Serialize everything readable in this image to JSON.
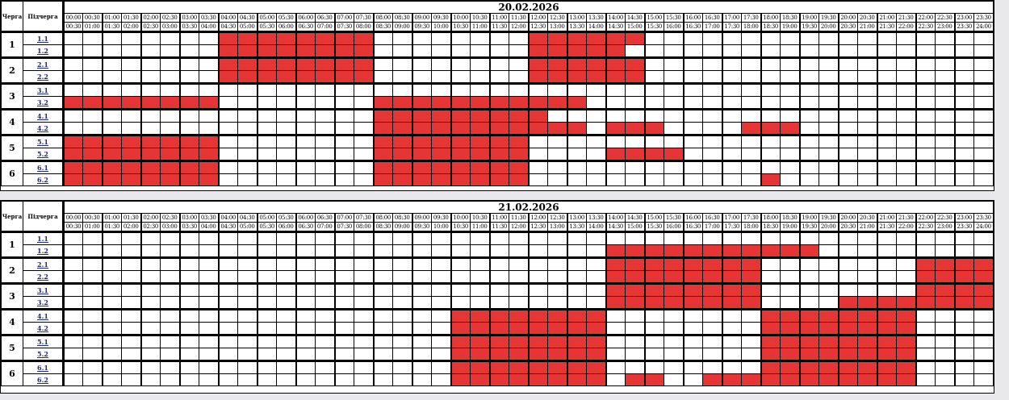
{
  "header": {
    "queue_label": "Черга",
    "subqueue_label": "Підчерга"
  },
  "queues": [
    "1",
    "2",
    "3",
    "4",
    "5",
    "6"
  ],
  "subqueues": [
    "1.1",
    "1.2",
    "2.1",
    "2.2",
    "3.1",
    "3.2",
    "4.1",
    "4.2",
    "5.1",
    "5.2",
    "6.1",
    "6.2"
  ],
  "time_starts": [
    "00:00",
    "00:30",
    "01:00",
    "01:30",
    "02:00",
    "02:30",
    "03:00",
    "03:30",
    "04:00",
    "04:30",
    "05:00",
    "05:30",
    "06:00",
    "06:30",
    "07:00",
    "07:30",
    "08:00",
    "08:30",
    "09:00",
    "09:30",
    "10:00",
    "10:30",
    "11:00",
    "11:30",
    "12:00",
    "12:30",
    "13:00",
    "13:30",
    "14:00",
    "14:30",
    "15:00",
    "15:30",
    "16:00",
    "16:30",
    "17:00",
    "17:30",
    "18:00",
    "18:30",
    "19:00",
    "19:30",
    "20:00",
    "20:30",
    "21:00",
    "21:30",
    "22:00",
    "22:30",
    "23:00",
    "23:30"
  ],
  "time_ends": [
    "00:30",
    "01:00",
    "01:30",
    "02:00",
    "02:30",
    "03:00",
    "03:30",
    "04:00",
    "04:30",
    "05:00",
    "05:30",
    "06:00",
    "06:30",
    "07:00",
    "07:30",
    "08:00",
    "08:30",
    "09:00",
    "09:30",
    "10:00",
    "10:30",
    "11:00",
    "11:30",
    "12:00",
    "12:30",
    "13:00",
    "13:30",
    "14:00",
    "14:30",
    "15:00",
    "15:30",
    "16:00",
    "16:30",
    "17:00",
    "17:30",
    "18:00",
    "18:30",
    "19:00",
    "19:30",
    "20:00",
    "20:30",
    "21:00",
    "21:30",
    "22:00",
    "22:30",
    "23:00",
    "23:30",
    "24:00"
  ],
  "outage_color": "#e63535",
  "schedules": [
    {
      "date": "20.02.2026",
      "outages": [
        [
          [
            8,
            15
          ],
          [
            24,
            29
          ]
        ],
        [
          [
            8,
            15
          ],
          [
            24,
            28
          ]
        ],
        [
          [
            8,
            15
          ],
          [
            24,
            29
          ]
        ],
        [
          [
            8,
            15
          ],
          [
            24,
            29
          ]
        ],
        [],
        [
          [
            0,
            7
          ],
          [
            16,
            26
          ]
        ],
        [
          [
            16,
            24
          ]
        ],
        [
          [
            16,
            26
          ],
          [
            28,
            30
          ],
          [
            35,
            37
          ]
        ],
        [
          [
            0,
            7
          ],
          [
            16,
            23
          ]
        ],
        [
          [
            0,
            7
          ],
          [
            16,
            23
          ],
          [
            28,
            31
          ]
        ],
        [
          [
            0,
            7
          ],
          [
            16,
            23
          ]
        ],
        [
          [
            0,
            7
          ],
          [
            16,
            23
          ],
          [
            36,
            36
          ]
        ]
      ]
    },
    {
      "date": "21.02.2026",
      "outages": [
        [],
        [
          [
            28,
            38
          ]
        ],
        [
          [
            28,
            35
          ],
          [
            44,
            47
          ]
        ],
        [
          [
            28,
            35
          ],
          [
            44,
            47
          ]
        ],
        [
          [
            28,
            35
          ],
          [
            44,
            47
          ]
        ],
        [
          [
            28,
            35
          ],
          [
            40,
            47
          ]
        ],
        [
          [
            20,
            27
          ],
          [
            36,
            43
          ]
        ],
        [
          [
            20,
            27
          ],
          [
            36,
            43
          ]
        ],
        [
          [
            20,
            27
          ],
          [
            36,
            43
          ]
        ],
        [
          [
            20,
            27
          ],
          [
            36,
            43
          ]
        ],
        [
          [
            20,
            27
          ],
          [
            36,
            43
          ]
        ],
        [
          [
            20,
            27
          ],
          [
            29,
            30
          ],
          [
            33,
            43
          ]
        ]
      ]
    }
  ]
}
